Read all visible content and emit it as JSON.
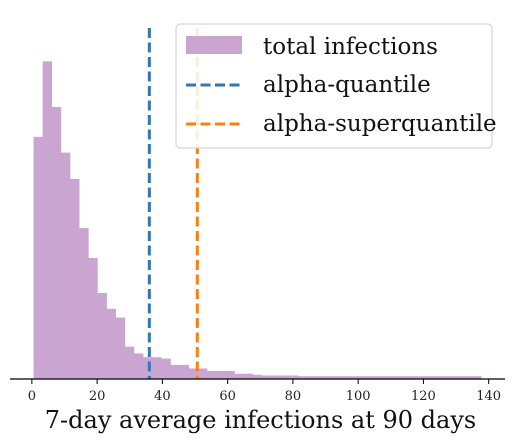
{
  "chart_data": {
    "type": "bar",
    "title": "",
    "xlabel": "7-day average infections at 90 days",
    "ylabel": "",
    "xlim": [
      -6.7,
      145
    ],
    "ylim": [
      0,
      1.0
    ],
    "grid": false,
    "legend_position": "top-right",
    "xticks": [
      0,
      20,
      40,
      60,
      80,
      100,
      120,
      140
    ],
    "histogram": {
      "name": "total infections",
      "color": "#cba5d2",
      "bin_width": 2.8,
      "bins_start": 0.5,
      "values": [
        0.69,
        0.905,
        0.775,
        0.645,
        0.57,
        0.43,
        0.345,
        0.245,
        0.2,
        0.175,
        0.092,
        0.073,
        0.062,
        0.062,
        0.058,
        0.04,
        0.04,
        0.03,
        0.03,
        0.023,
        0.023,
        0.023,
        0.015,
        0.015,
        0.012,
        0.01,
        0.01,
        0.01,
        0.01,
        0.008,
        0.008,
        0.008,
        0.008,
        0.008,
        0.008,
        0.008,
        0.008,
        0.008,
        0.008,
        0.008,
        0.008,
        0.008,
        0.008,
        0.008,
        0.008,
        0.008,
        0.008,
        0.008,
        0.008
      ]
    },
    "vlines": [
      {
        "name": "alpha-quantile",
        "x": 36.0,
        "color": "#2f77b6",
        "style": "dashed"
      },
      {
        "name": "alpha-superquantile",
        "x": 50.7,
        "color": "#ff7f0e",
        "style": "dashed"
      }
    ]
  }
}
